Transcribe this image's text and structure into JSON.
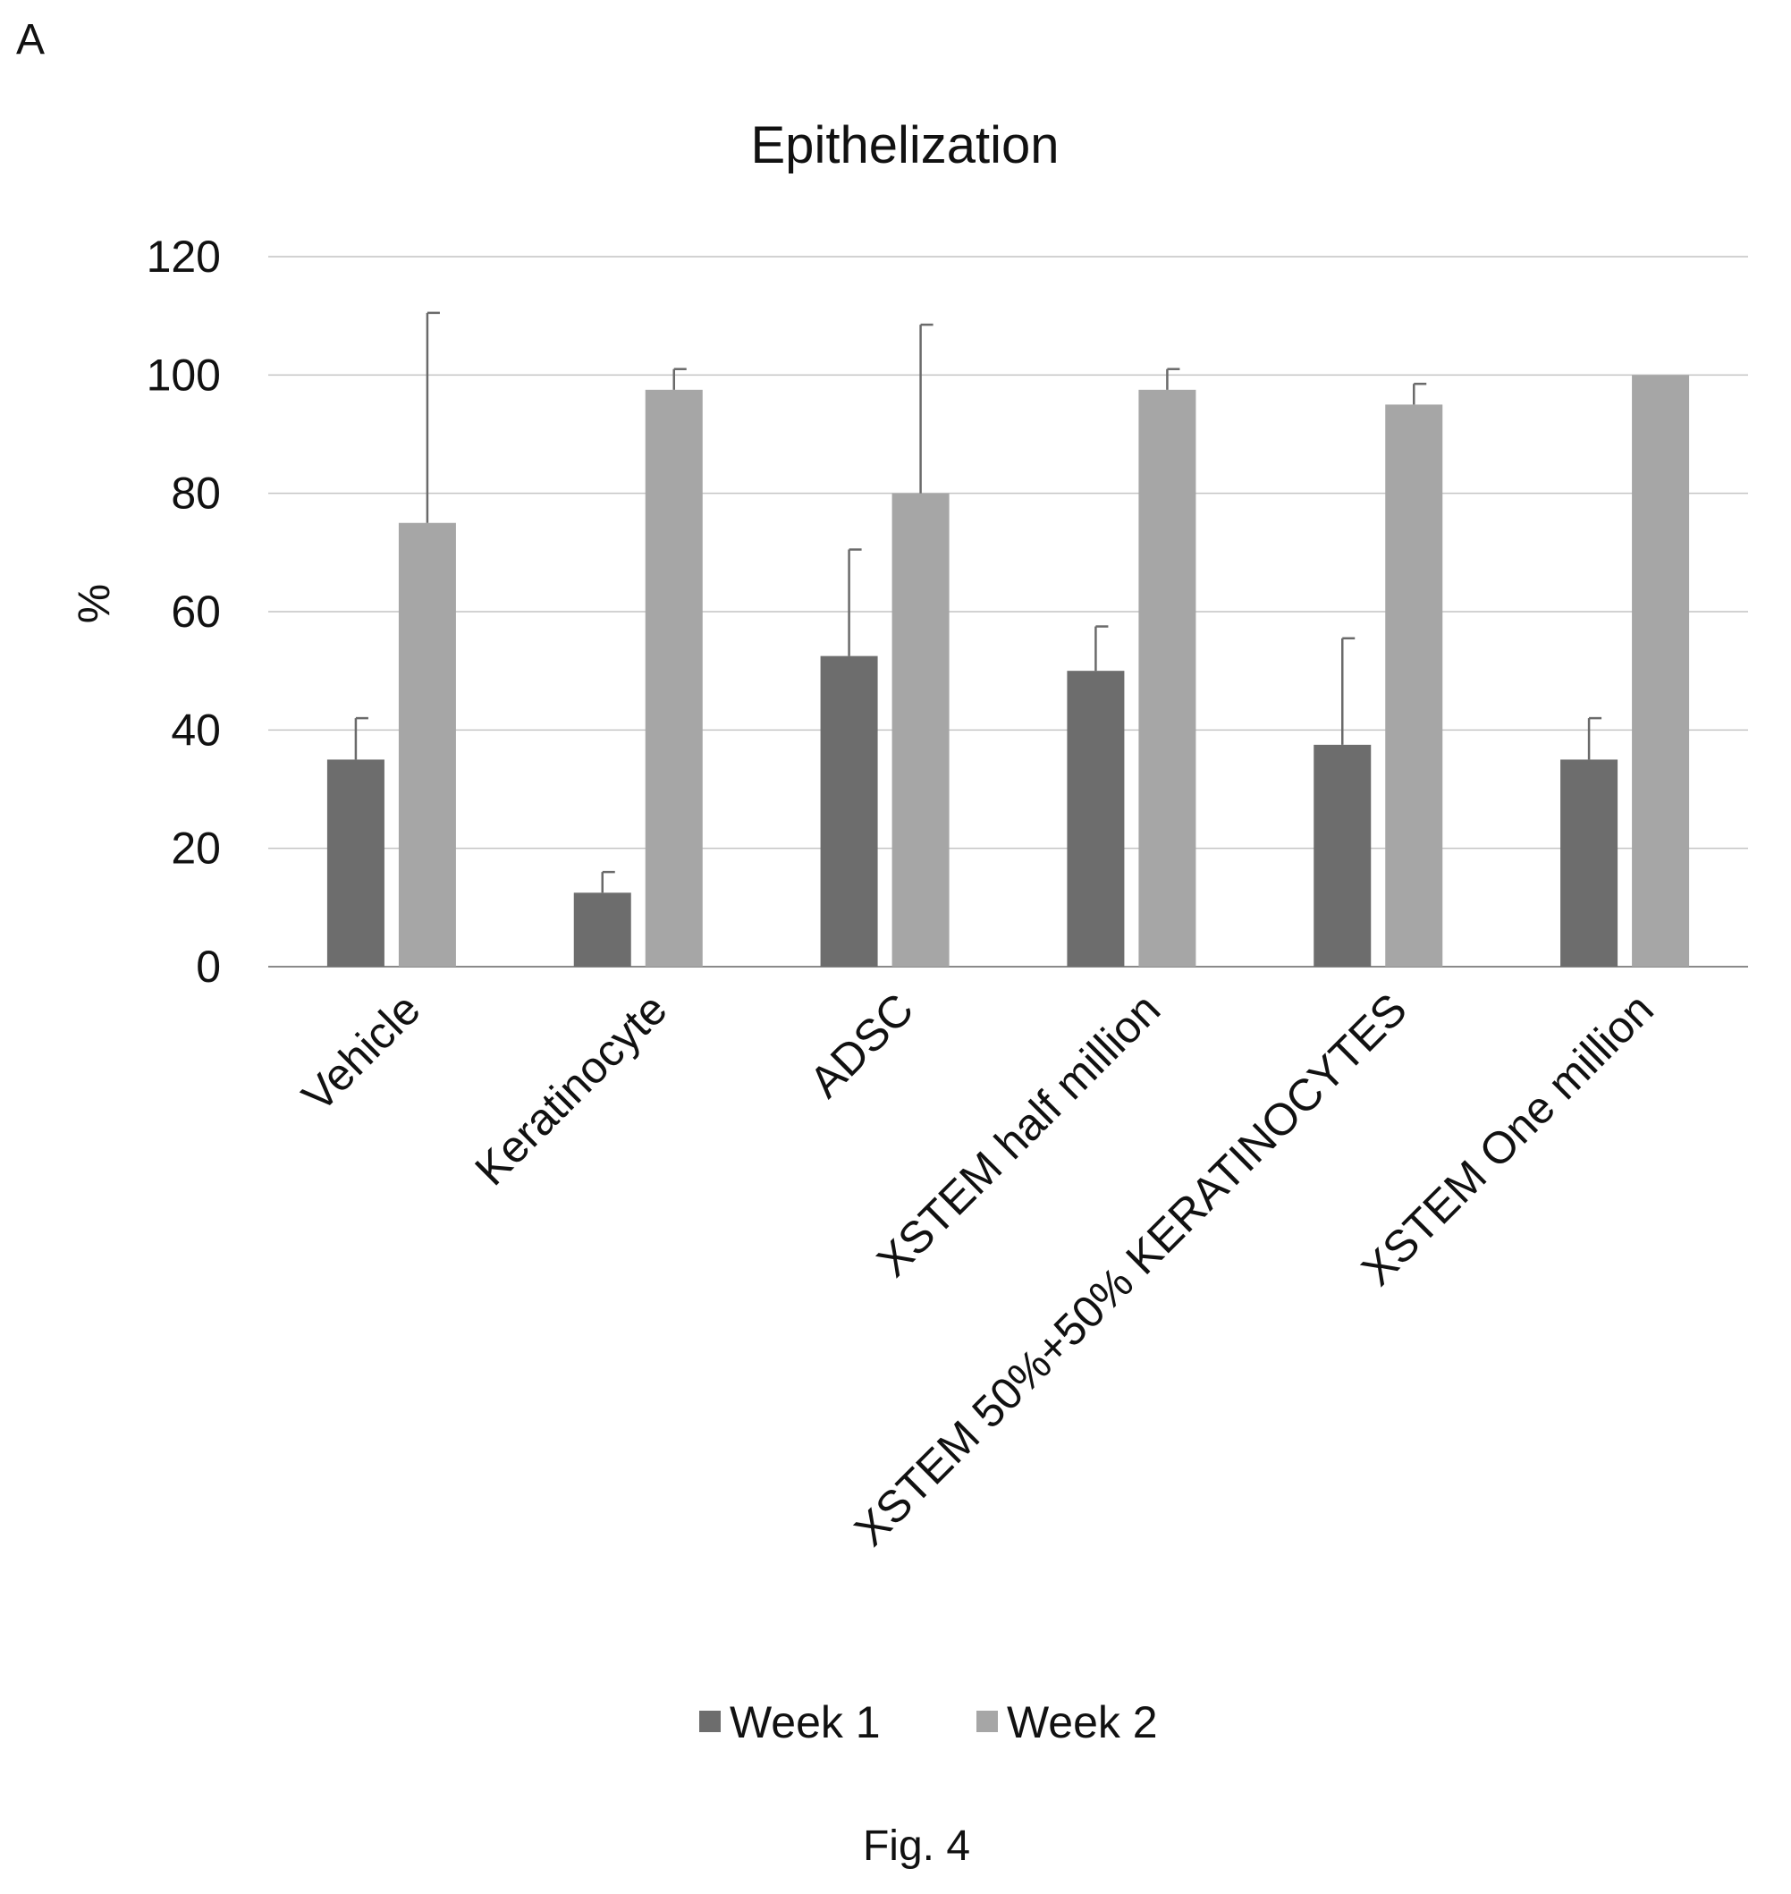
{
  "figure": {
    "panel_label": "A",
    "caption": "Fig. 4"
  },
  "chart_data": {
    "type": "bar",
    "title": "Epithelization",
    "xlabel": "",
    "ylabel": "%",
    "ylim": [
      0,
      120
    ],
    "yticks": [
      0,
      20,
      40,
      60,
      80,
      100,
      120
    ],
    "ytick_labels": [
      "0",
      "20",
      "40",
      "60",
      "80",
      "100",
      "120"
    ],
    "grid": true,
    "legend_position": "bottom",
    "categories": [
      "Vehicle",
      "Keratinocyte",
      "ADSC",
      "XSTEM half million",
      "XSTEM 50%+50% KERATINOCYTES",
      "XSTEM One million"
    ],
    "series": [
      {
        "name": "Week 1",
        "color": "#6d6d6d",
        "values": [
          35,
          12.5,
          52.5,
          50,
          37.5,
          35
        ],
        "error": [
          7,
          3.5,
          18,
          7.5,
          18,
          7
        ]
      },
      {
        "name": "Week 2",
        "color": "#a6a6a6",
        "values": [
          75,
          97.5,
          80,
          97.5,
          95,
          100
        ],
        "error": [
          35.5,
          3.5,
          28.5,
          3.5,
          3.5,
          0
        ]
      }
    ]
  }
}
